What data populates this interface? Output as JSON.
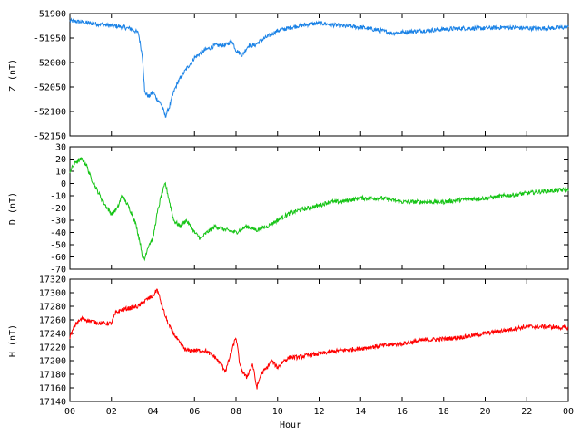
{
  "chart_data": [
    {
      "type": "line",
      "ylabel": "Z (nT)",
      "ylim": [
        -52150,
        -51900
      ],
      "yticks": [
        -51900,
        -51950,
        -52000,
        -52050,
        -52100,
        -52150
      ],
      "xlim": [
        0,
        24
      ],
      "x_ticks_shown": false,
      "series": [
        {
          "color": "#1a82e6",
          "x": [
            0,
            0.5,
            1,
            1.5,
            2,
            2.5,
            3,
            3.3,
            3.5,
            3.6,
            3.8,
            4,
            4.2,
            4.4,
            4.6,
            4.8,
            5,
            5.2,
            5.5,
            6,
            6.5,
            7,
            7.5,
            7.8,
            8,
            8.3,
            8.6,
            8.9,
            9.2,
            9.6,
            10,
            10.5,
            11,
            11.5,
            12,
            12.5,
            13,
            14,
            15,
            15.5,
            16,
            17,
            18,
            19,
            20,
            21,
            22,
            23,
            24
          ],
          "y": [
            -51915,
            -51917,
            -51920,
            -51922,
            -51925,
            -51927,
            -51932,
            -51940,
            -51990,
            -52060,
            -52070,
            -52060,
            -52075,
            -52085,
            -52110,
            -52090,
            -52060,
            -52040,
            -52020,
            -51990,
            -51975,
            -51965,
            -51965,
            -51955,
            -51975,
            -51985,
            -51965,
            -51965,
            -51955,
            -51945,
            -51935,
            -51930,
            -51925,
            -51922,
            -51920,
            -51922,
            -51925,
            -51928,
            -51935,
            -51940,
            -51938,
            -51935,
            -51932,
            -51930,
            -51930,
            -51928,
            -51930,
            -51930,
            -51928
          ]
        }
      ]
    },
    {
      "type": "line",
      "ylabel": "D (nT)",
      "ylim": [
        -70,
        30
      ],
      "yticks": [
        30,
        20,
        10,
        0,
        -10,
        -20,
        -30,
        -40,
        -50,
        -60,
        -70
      ],
      "xlim": [
        0,
        24
      ],
      "x_ticks_shown": false,
      "series": [
        {
          "color": "#16c416",
          "x": [
            0,
            0.3,
            0.6,
            0.8,
            1,
            1.3,
            1.6,
            1.8,
            2,
            2.3,
            2.5,
            2.7,
            3,
            3.2,
            3.4,
            3.5,
            3.6,
            3.7,
            3.8,
            4,
            4.2,
            4.4,
            4.6,
            4.8,
            5,
            5.3,
            5.6,
            6,
            6.3,
            6.6,
            7,
            7.5,
            8,
            8.5,
            9,
            9.5,
            10,
            10.5,
            11,
            11.5,
            12,
            12.5,
            13,
            14,
            15,
            16,
            17,
            18,
            19,
            20,
            21,
            22,
            23,
            24
          ],
          "y": [
            10,
            18,
            20,
            15,
            5,
            -5,
            -15,
            -20,
            -25,
            -20,
            -10,
            -15,
            -25,
            -35,
            -50,
            -60,
            -62,
            -55,
            -50,
            -45,
            -25,
            -10,
            0,
            -15,
            -30,
            -35,
            -30,
            -40,
            -45,
            -40,
            -35,
            -38,
            -40,
            -35,
            -38,
            -35,
            -30,
            -25,
            -22,
            -20,
            -18,
            -15,
            -15,
            -12,
            -12,
            -15,
            -15,
            -15,
            -13,
            -12,
            -10,
            -8,
            -6,
            -5
          ]
        }
      ]
    },
    {
      "type": "line",
      "ylabel": "H (nT)",
      "xlabel": "Hour",
      "ylim": [
        17140,
        17320
      ],
      "yticks": [
        17320,
        17300,
        17280,
        17260,
        17240,
        17220,
        17200,
        17180,
        17160,
        17140
      ],
      "xlim": [
        0,
        24
      ],
      "xtick_values": [
        0,
        2,
        4,
        6,
        8,
        10,
        12,
        14,
        16,
        18,
        20,
        22,
        24
      ],
      "xticks": [
        "00",
        "02",
        "04",
        "06",
        "08",
        "10",
        "12",
        "14",
        "16",
        "18",
        "20",
        "22",
        "00"
      ],
      "series": [
        {
          "color": "#ff0000",
          "x": [
            0,
            0.3,
            0.6,
            1,
            1.5,
            2,
            2.2,
            2.5,
            3,
            3.3,
            3.5,
            3.7,
            4,
            4.2,
            4.4,
            4.6,
            4.8,
            5,
            5.3,
            5.6,
            6,
            6.5,
            7,
            7.5,
            7.8,
            8,
            8.2,
            8.5,
            8.8,
            9,
            9.2,
            9.5,
            9.7,
            10,
            10.3,
            10.6,
            11,
            11.5,
            12,
            13,
            14,
            15,
            16,
            17,
            18,
            19,
            20,
            21,
            22,
            23,
            24
          ],
          "y": [
            17235,
            17255,
            17262,
            17258,
            17255,
            17255,
            17270,
            17275,
            17278,
            17280,
            17285,
            17290,
            17295,
            17305,
            17285,
            17265,
            17250,
            17240,
            17225,
            17215,
            17215,
            17215,
            17205,
            17185,
            17215,
            17235,
            17190,
            17175,
            17195,
            17160,
            17180,
            17190,
            17200,
            17190,
            17200,
            17205,
            17205,
            17208,
            17210,
            17215,
            17218,
            17222,
            17225,
            17230,
            17232,
            17235,
            17240,
            17245,
            17250,
            17250,
            17248
          ]
        }
      ]
    }
  ]
}
